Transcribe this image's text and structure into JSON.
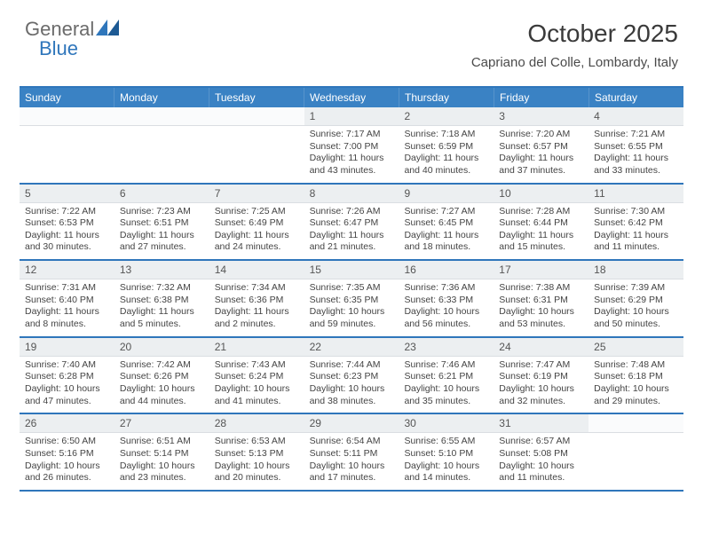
{
  "brand": {
    "general": "General",
    "blue": "Blue"
  },
  "header": {
    "month_title": "October 2025",
    "location": "Capriano del Colle, Lombardy, Italy"
  },
  "days_of_week": [
    "Sunday",
    "Monday",
    "Tuesday",
    "Wednesday",
    "Thursday",
    "Friday",
    "Saturday"
  ],
  "colors": {
    "accent": "#2f76bb",
    "header_row": "#3a82c4",
    "daynum_bg": "#eceff1"
  },
  "weeks": [
    [
      {
        "n": "",
        "sunrise": "",
        "sunset": "",
        "daylight": ""
      },
      {
        "n": "",
        "sunrise": "",
        "sunset": "",
        "daylight": ""
      },
      {
        "n": "",
        "sunrise": "",
        "sunset": "",
        "daylight": ""
      },
      {
        "n": "1",
        "sunrise": "Sunrise: 7:17 AM",
        "sunset": "Sunset: 7:00 PM",
        "daylight": "Daylight: 11 hours and 43 minutes."
      },
      {
        "n": "2",
        "sunrise": "Sunrise: 7:18 AM",
        "sunset": "Sunset: 6:59 PM",
        "daylight": "Daylight: 11 hours and 40 minutes."
      },
      {
        "n": "3",
        "sunrise": "Sunrise: 7:20 AM",
        "sunset": "Sunset: 6:57 PM",
        "daylight": "Daylight: 11 hours and 37 minutes."
      },
      {
        "n": "4",
        "sunrise": "Sunrise: 7:21 AM",
        "sunset": "Sunset: 6:55 PM",
        "daylight": "Daylight: 11 hours and 33 minutes."
      }
    ],
    [
      {
        "n": "5",
        "sunrise": "Sunrise: 7:22 AM",
        "sunset": "Sunset: 6:53 PM",
        "daylight": "Daylight: 11 hours and 30 minutes."
      },
      {
        "n": "6",
        "sunrise": "Sunrise: 7:23 AM",
        "sunset": "Sunset: 6:51 PM",
        "daylight": "Daylight: 11 hours and 27 minutes."
      },
      {
        "n": "7",
        "sunrise": "Sunrise: 7:25 AM",
        "sunset": "Sunset: 6:49 PM",
        "daylight": "Daylight: 11 hours and 24 minutes."
      },
      {
        "n": "8",
        "sunrise": "Sunrise: 7:26 AM",
        "sunset": "Sunset: 6:47 PM",
        "daylight": "Daylight: 11 hours and 21 minutes."
      },
      {
        "n": "9",
        "sunrise": "Sunrise: 7:27 AM",
        "sunset": "Sunset: 6:45 PM",
        "daylight": "Daylight: 11 hours and 18 minutes."
      },
      {
        "n": "10",
        "sunrise": "Sunrise: 7:28 AM",
        "sunset": "Sunset: 6:44 PM",
        "daylight": "Daylight: 11 hours and 15 minutes."
      },
      {
        "n": "11",
        "sunrise": "Sunrise: 7:30 AM",
        "sunset": "Sunset: 6:42 PM",
        "daylight": "Daylight: 11 hours and 11 minutes."
      }
    ],
    [
      {
        "n": "12",
        "sunrise": "Sunrise: 7:31 AM",
        "sunset": "Sunset: 6:40 PM",
        "daylight": "Daylight: 11 hours and 8 minutes."
      },
      {
        "n": "13",
        "sunrise": "Sunrise: 7:32 AM",
        "sunset": "Sunset: 6:38 PM",
        "daylight": "Daylight: 11 hours and 5 minutes."
      },
      {
        "n": "14",
        "sunrise": "Sunrise: 7:34 AM",
        "sunset": "Sunset: 6:36 PM",
        "daylight": "Daylight: 11 hours and 2 minutes."
      },
      {
        "n": "15",
        "sunrise": "Sunrise: 7:35 AM",
        "sunset": "Sunset: 6:35 PM",
        "daylight": "Daylight: 10 hours and 59 minutes."
      },
      {
        "n": "16",
        "sunrise": "Sunrise: 7:36 AM",
        "sunset": "Sunset: 6:33 PM",
        "daylight": "Daylight: 10 hours and 56 minutes."
      },
      {
        "n": "17",
        "sunrise": "Sunrise: 7:38 AM",
        "sunset": "Sunset: 6:31 PM",
        "daylight": "Daylight: 10 hours and 53 minutes."
      },
      {
        "n": "18",
        "sunrise": "Sunrise: 7:39 AM",
        "sunset": "Sunset: 6:29 PM",
        "daylight": "Daylight: 10 hours and 50 minutes."
      }
    ],
    [
      {
        "n": "19",
        "sunrise": "Sunrise: 7:40 AM",
        "sunset": "Sunset: 6:28 PM",
        "daylight": "Daylight: 10 hours and 47 minutes."
      },
      {
        "n": "20",
        "sunrise": "Sunrise: 7:42 AM",
        "sunset": "Sunset: 6:26 PM",
        "daylight": "Daylight: 10 hours and 44 minutes."
      },
      {
        "n": "21",
        "sunrise": "Sunrise: 7:43 AM",
        "sunset": "Sunset: 6:24 PM",
        "daylight": "Daylight: 10 hours and 41 minutes."
      },
      {
        "n": "22",
        "sunrise": "Sunrise: 7:44 AM",
        "sunset": "Sunset: 6:23 PM",
        "daylight": "Daylight: 10 hours and 38 minutes."
      },
      {
        "n": "23",
        "sunrise": "Sunrise: 7:46 AM",
        "sunset": "Sunset: 6:21 PM",
        "daylight": "Daylight: 10 hours and 35 minutes."
      },
      {
        "n": "24",
        "sunrise": "Sunrise: 7:47 AM",
        "sunset": "Sunset: 6:19 PM",
        "daylight": "Daylight: 10 hours and 32 minutes."
      },
      {
        "n": "25",
        "sunrise": "Sunrise: 7:48 AM",
        "sunset": "Sunset: 6:18 PM",
        "daylight": "Daylight: 10 hours and 29 minutes."
      }
    ],
    [
      {
        "n": "26",
        "sunrise": "Sunrise: 6:50 AM",
        "sunset": "Sunset: 5:16 PM",
        "daylight": "Daylight: 10 hours and 26 minutes."
      },
      {
        "n": "27",
        "sunrise": "Sunrise: 6:51 AM",
        "sunset": "Sunset: 5:14 PM",
        "daylight": "Daylight: 10 hours and 23 minutes."
      },
      {
        "n": "28",
        "sunrise": "Sunrise: 6:53 AM",
        "sunset": "Sunset: 5:13 PM",
        "daylight": "Daylight: 10 hours and 20 minutes."
      },
      {
        "n": "29",
        "sunrise": "Sunrise: 6:54 AM",
        "sunset": "Sunset: 5:11 PM",
        "daylight": "Daylight: 10 hours and 17 minutes."
      },
      {
        "n": "30",
        "sunrise": "Sunrise: 6:55 AM",
        "sunset": "Sunset: 5:10 PM",
        "daylight": "Daylight: 10 hours and 14 minutes."
      },
      {
        "n": "31",
        "sunrise": "Sunrise: 6:57 AM",
        "sunset": "Sunset: 5:08 PM",
        "daylight": "Daylight: 10 hours and 11 minutes."
      },
      {
        "n": "",
        "sunrise": "",
        "sunset": "",
        "daylight": ""
      }
    ]
  ]
}
